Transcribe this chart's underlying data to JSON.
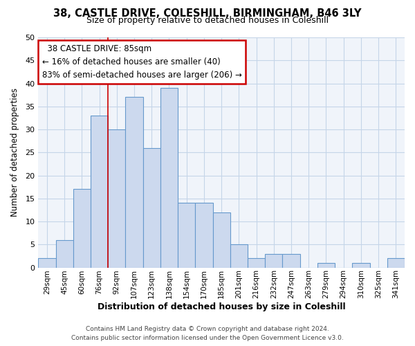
{
  "title": "38, CASTLE DRIVE, COLESHILL, BIRMINGHAM, B46 3LY",
  "subtitle": "Size of property relative to detached houses in Coleshill",
  "xlabel": "Distribution of detached houses by size in Coleshill",
  "ylabel": "Number of detached properties",
  "bar_labels": [
    "29sqm",
    "45sqm",
    "60sqm",
    "76sqm",
    "92sqm",
    "107sqm",
    "123sqm",
    "138sqm",
    "154sqm",
    "170sqm",
    "185sqm",
    "201sqm",
    "216sqm",
    "232sqm",
    "247sqm",
    "263sqm",
    "279sqm",
    "294sqm",
    "310sqm",
    "325sqm",
    "341sqm"
  ],
  "bar_values": [
    2,
    6,
    17,
    33,
    30,
    37,
    26,
    39,
    14,
    14,
    12,
    5,
    2,
    3,
    3,
    0,
    1,
    0,
    1,
    0,
    2
  ],
  "bar_color": "#ccd9ee",
  "bar_edge_color": "#6699cc",
  "highlight_bar_index": 3,
  "annotation_title": "38 CASTLE DRIVE: 85sqm",
  "annotation_line1": "← 16% of detached houses are smaller (40)",
  "annotation_line2": "83% of semi-detached houses are larger (206) →",
  "annotation_box_color": "#ffffff",
  "annotation_box_edge": "#cc0000",
  "vline_color": "#cc0000",
  "ylim": [
    0,
    50
  ],
  "yticks": [
    0,
    5,
    10,
    15,
    20,
    25,
    30,
    35,
    40,
    45,
    50
  ],
  "footer1": "Contains HM Land Registry data © Crown copyright and database right 2024.",
  "footer2": "Contains public sector information licensed under the Open Government Licence v3.0.",
  "background_color": "#ffffff",
  "grid_color": "#c5d5e8",
  "plot_bg_color": "#f0f4fa"
}
